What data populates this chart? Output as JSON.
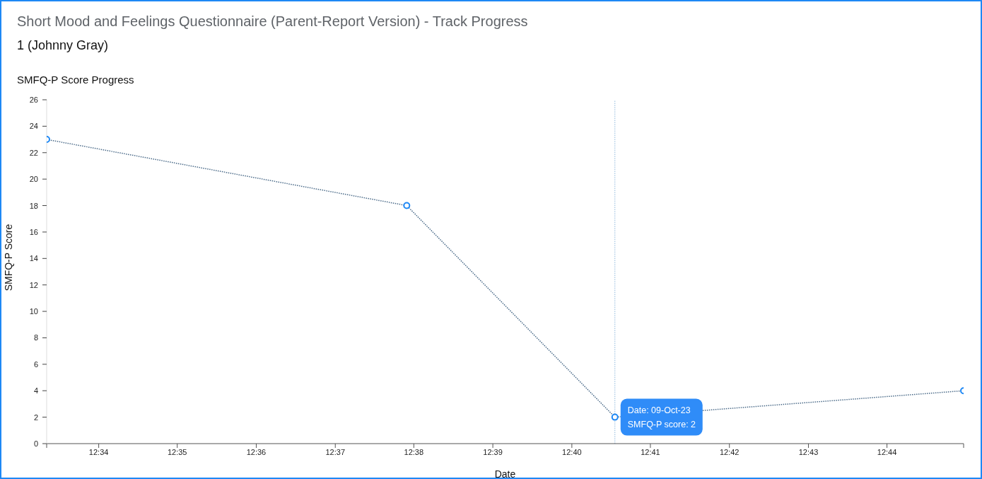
{
  "chart_data": {
    "type": "line",
    "title": "Short Mood and Feelings Questionnaire (Parent-Report Version) - Track Progress",
    "subtitle": "1 (Johnny Gray)",
    "annotations": [
      "SMFQ-P Score Progress",
      {
        "text": "Date: 09-Oct-23",
        "x": 12.6758,
        "y": 2
      },
      {
        "text": "SMFQ-P score: 2",
        "x": 12.6758,
        "y": 2
      }
    ],
    "xlabel": "Date",
    "ylabel": "SMFQ-P Score",
    "x": [
      12.5557,
      12.6318,
      12.6758,
      12.7495
    ],
    "series": [
      {
        "color": "#4a6a88",
        "colors": [
          "#1e88f5",
          "#1e88f5",
          "#1e88f5",
          "#1e88f5"
        ],
        "values": [
          23,
          18,
          2,
          4
        ]
      }
    ],
    "xlim": [
      12.5557,
      12.7495
    ],
    "xticks": [
      {
        "value": 12.5557,
        "label": null
      },
      {
        "value": 12.5667,
        "label": "12:34"
      },
      {
        "value": 12.5833,
        "label": "12:35"
      },
      {
        "value": 12.6,
        "label": "12:36"
      },
      {
        "value": 12.6167,
        "label": "12:37"
      },
      {
        "value": 12.6333,
        "label": "12:38"
      },
      {
        "value": 12.65,
        "label": "12:39"
      },
      {
        "value": 12.6667,
        "label": "12:40"
      },
      {
        "value": 12.6833,
        "label": "12:41"
      },
      {
        "value": 12.7,
        "label": "12:42"
      },
      {
        "value": 12.7167,
        "label": "12:43"
      },
      {
        "value": 12.7333,
        "label": "12:44"
      },
      {
        "value": 12.7495,
        "label": null
      }
    ],
    "ylim": [
      0,
      26
    ],
    "yticks": [
      0,
      2,
      4,
      6,
      8,
      10,
      12,
      14,
      16,
      18,
      20,
      22,
      24,
      26
    ],
    "ref_lines": [
      {
        "axis": "x",
        "value": 12.6758,
        "color": "#8fb8dc",
        "line_style": "dotted"
      }
    ],
    "marker": "circle",
    "line_style": "dotted"
  }
}
